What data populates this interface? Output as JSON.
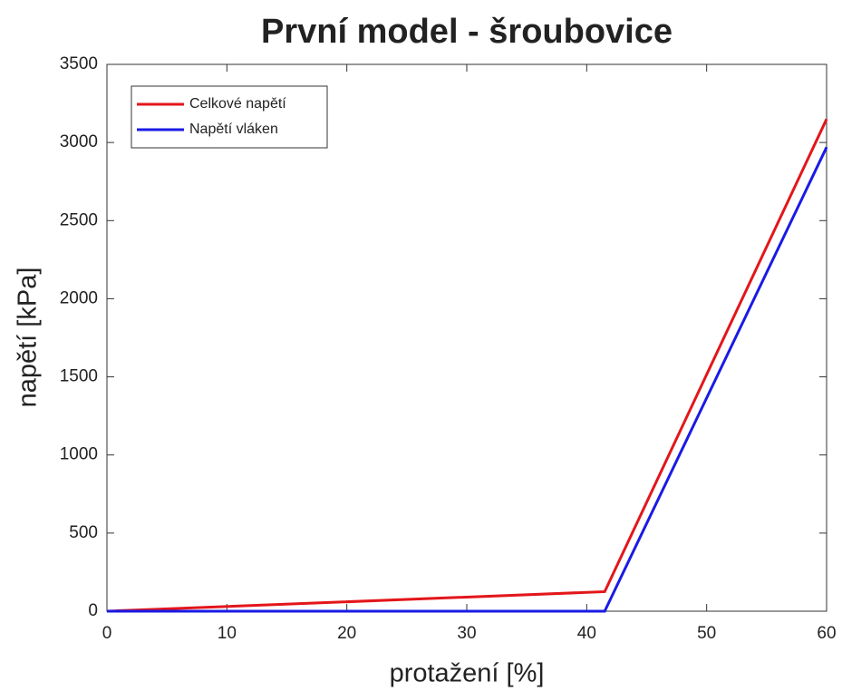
{
  "chart_data": {
    "type": "line",
    "title": "První model - šroubovice",
    "xlabel": "protažení [%]",
    "ylabel": "napětí [kPa]",
    "x": [
      0,
      41.5,
      60
    ],
    "series": [
      {
        "name": "Celkové napětí",
        "color": "#e3161b",
        "values": [
          0,
          125,
          3150
        ]
      },
      {
        "name": "Napětí vláken",
        "color": "#1a1ae6",
        "values": [
          0,
          0,
          2970
        ]
      }
    ],
    "xlim": [
      0,
      60
    ],
    "xticks": [
      0,
      10,
      20,
      30,
      40,
      50,
      60
    ],
    "ylim": [
      0,
      3500
    ],
    "yticks": [
      0,
      500,
      1000,
      1500,
      2000,
      2500,
      3000,
      3500
    ],
    "legend": "upper-left"
  }
}
